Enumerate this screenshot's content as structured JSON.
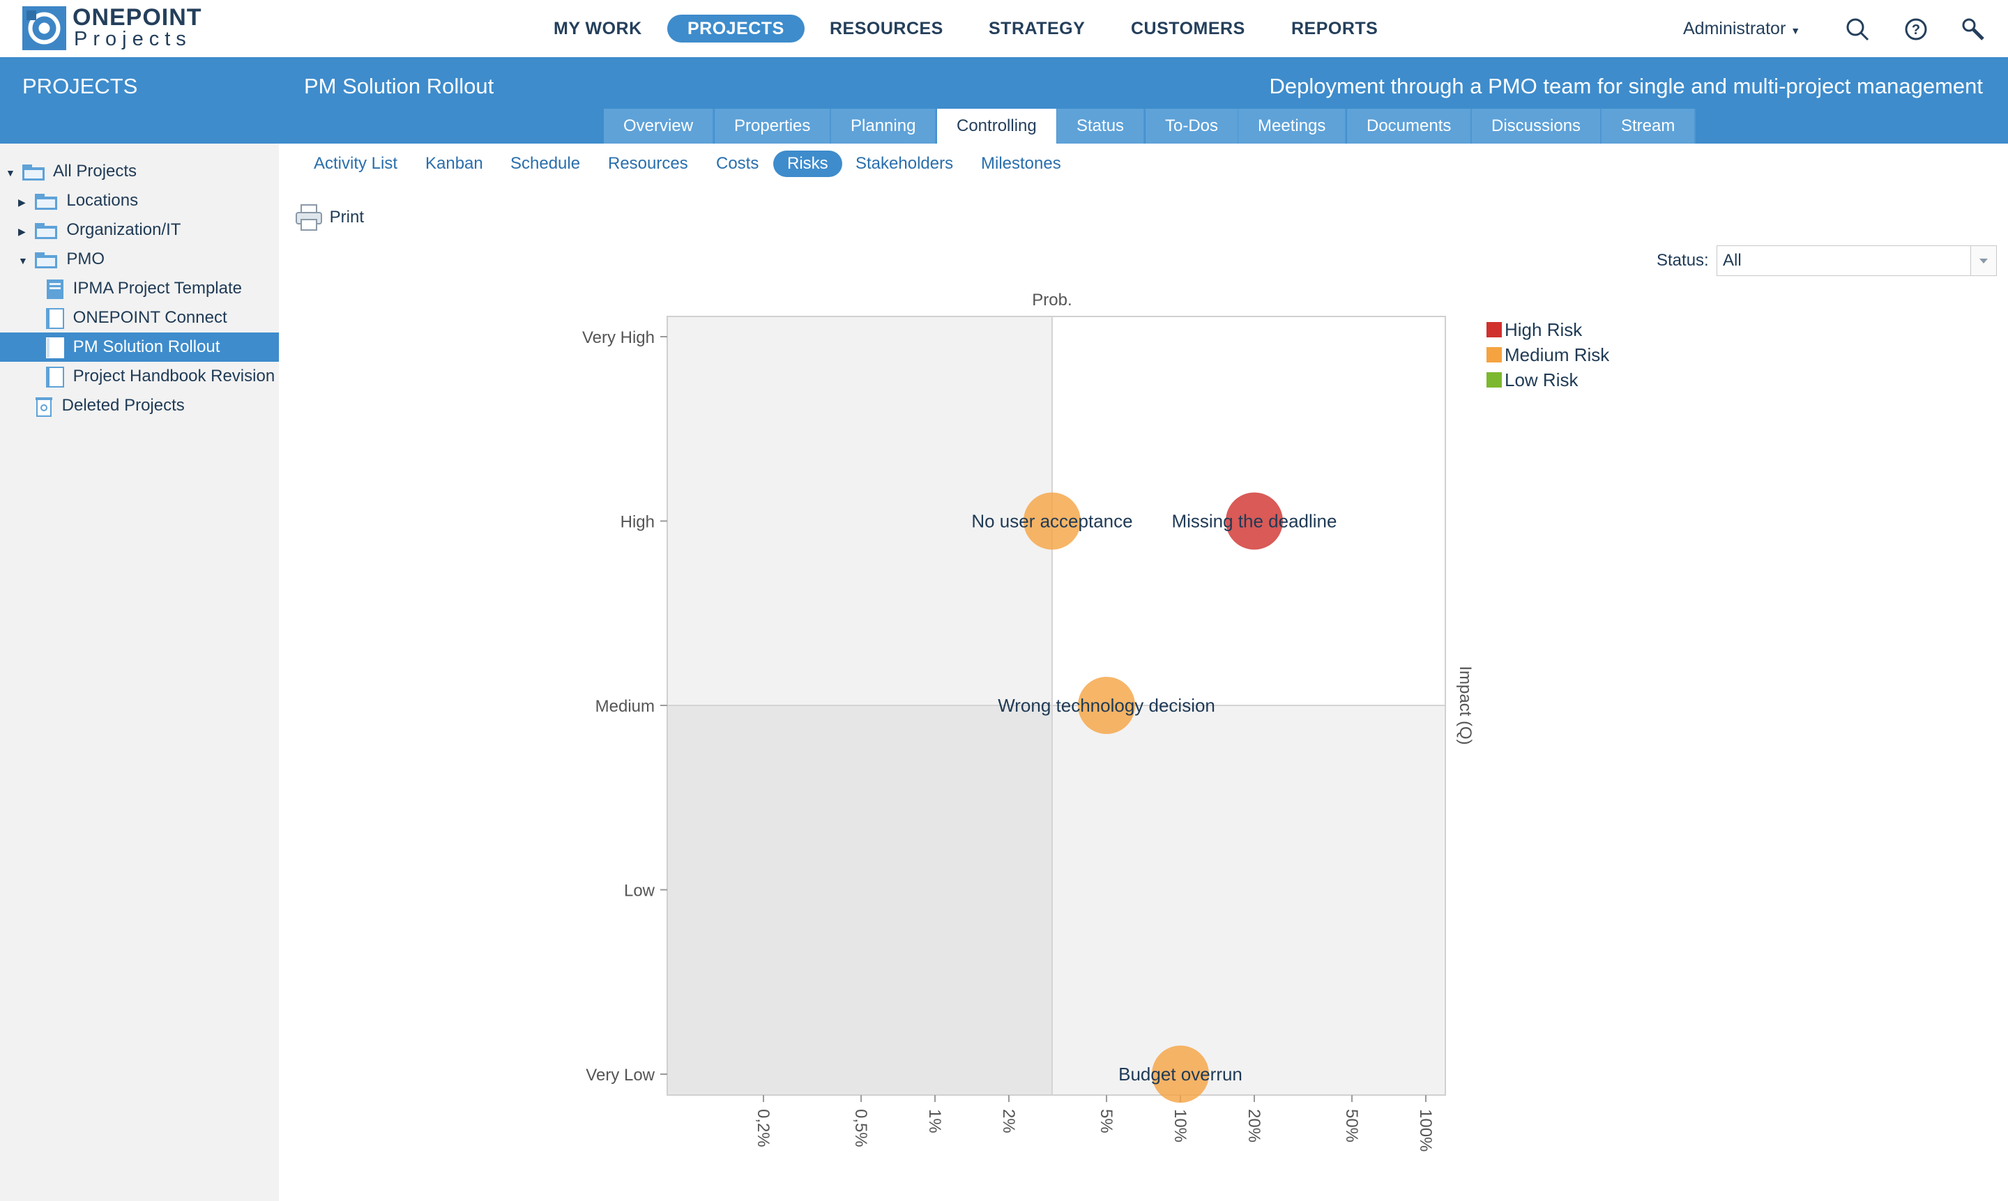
{
  "brand": {
    "line1": "ONEPOINT",
    "line2": "Projects"
  },
  "nav": [
    {
      "label": "MY WORK"
    },
    {
      "label": "PROJECTS",
      "active": true
    },
    {
      "label": "RESOURCES"
    },
    {
      "label": "STRATEGY"
    },
    {
      "label": "CUSTOMERS"
    },
    {
      "label": "REPORTS"
    }
  ],
  "user": {
    "label": "Administrator"
  },
  "icons": {
    "search": "search-icon",
    "help": "help-icon",
    "tools": "wrench-icon",
    "print": "printer-icon"
  },
  "colors": {
    "accent": "#3e8ccc",
    "high": "#d0312d",
    "medium": "#f5a341",
    "low": "#7cb82f"
  },
  "sidebar": {
    "title": "PROJECTS",
    "items": [
      {
        "label": "All Projects",
        "arrow": "▼",
        "icon": "folder-icon"
      },
      {
        "label": "Locations",
        "arrow": "▶",
        "icon": "folder-icon"
      },
      {
        "label": "Organization/IT",
        "arrow": "▶",
        "icon": "folder-icon"
      },
      {
        "label": "PMO",
        "arrow": "▼",
        "icon": "folder-icon"
      },
      {
        "label": "IPMA Project Template",
        "arrow": "",
        "icon": "template-icon"
      },
      {
        "label": "ONEPOINT Connect",
        "arrow": "",
        "icon": "project-icon"
      },
      {
        "label": "PM Solution Rollout",
        "arrow": "",
        "icon": "project-icon",
        "selected": true
      },
      {
        "label": "Project Handbook Revision",
        "arrow": "",
        "icon": "project-icon"
      },
      {
        "label": "Deleted Projects",
        "arrow": "",
        "icon": "trash-icon"
      }
    ]
  },
  "project": {
    "title": "PM Solution Rollout",
    "description": "Deployment through a PMO team for single and multi-project management"
  },
  "tabs": [
    {
      "label": "Overview"
    },
    {
      "label": "Properties"
    },
    {
      "label": "Planning"
    },
    {
      "label": "Controlling",
      "active": true
    },
    {
      "label": "Status"
    },
    {
      "label": "To-Dos"
    },
    {
      "label": "Meetings"
    },
    {
      "label": "Documents"
    },
    {
      "label": "Discussions"
    },
    {
      "label": "Stream"
    }
  ],
  "subtabs": [
    {
      "label": "Activity List"
    },
    {
      "label": "Kanban"
    },
    {
      "label": "Schedule"
    },
    {
      "label": "Resources"
    },
    {
      "label": "Costs"
    },
    {
      "label": "Risks",
      "active": true
    },
    {
      "label": "Stakeholders"
    },
    {
      "label": "Milestones"
    }
  ],
  "toolbar": {
    "print_label": "Print"
  },
  "filter": {
    "status_label": "Status:",
    "status_value": "All"
  },
  "chart_data": {
    "type": "scatter",
    "xlabel": "Prob.",
    "ylabel": "Impact (Q)",
    "x_ticks": [
      "0,2%",
      "0,5%",
      "1%",
      "2%",
      "5%",
      "10%",
      "20%",
      "50%",
      "100%"
    ],
    "x_tick_values": [
      0.2,
      0.5,
      1,
      2,
      5,
      10,
      20,
      50,
      100
    ],
    "x_scale": "log",
    "x_divider": 3,
    "y_categories": [
      "Very Low",
      "Low",
      "Medium",
      "High",
      "Very High"
    ],
    "legend": [
      {
        "name": "High Risk",
        "color": "#d0312d"
      },
      {
        "name": "Medium Risk",
        "color": "#f5a341"
      },
      {
        "name": "Low Risk",
        "color": "#7cb82f"
      }
    ],
    "legend_position": "right",
    "points": [
      {
        "label": "No user acceptance",
        "x": 3,
        "y": "High",
        "level": "Medium Risk"
      },
      {
        "label": "Missing the deadline",
        "x": 20,
        "y": "High",
        "level": "High Risk"
      },
      {
        "label": "Wrong technology decision",
        "x": 5,
        "y": "Medium",
        "level": "Medium Risk"
      },
      {
        "label": "Budget overrun",
        "x": 10,
        "y": "Very Low",
        "level": "Medium Risk"
      }
    ]
  }
}
